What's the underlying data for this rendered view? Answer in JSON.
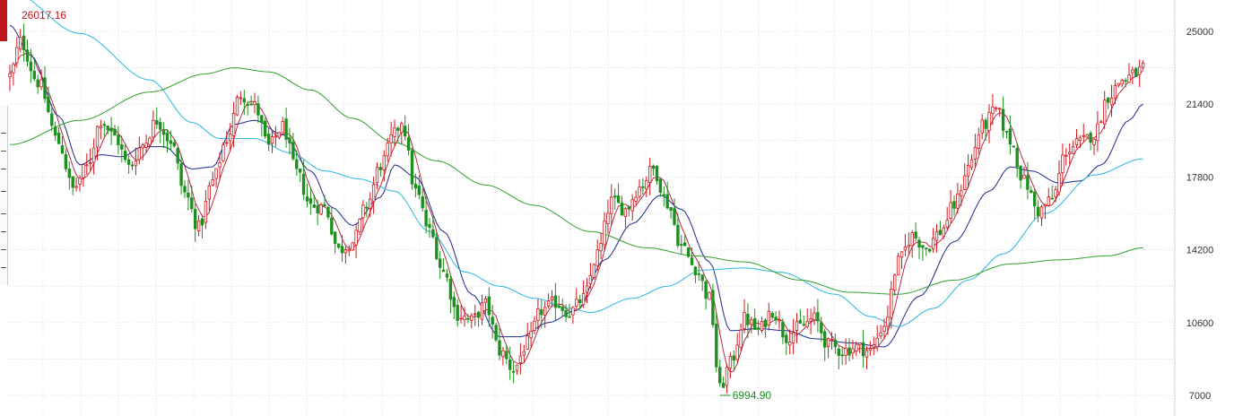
{
  "chart_data": {
    "type": "candlestick",
    "y_axis": {
      "ticks": [
        25000,
        21400,
        17800,
        14200,
        10600,
        7000
      ],
      "range": [
        7000,
        25000
      ],
      "position": "right",
      "grid": true
    },
    "x_axis": {
      "grid": true,
      "labels": []
    },
    "annotations": {
      "high_label": "26017.16",
      "low_label": "6994.90"
    },
    "colors": {
      "up": "#d0161b",
      "down": "#1f8f1f",
      "ma_fast": "#b0182f",
      "ma_mid": "#1b2a8f",
      "ma_slow": "#2ab7e0",
      "ma_long": "#2ea02e",
      "grid": "#c8c8c8",
      "axis_text": "#333333",
      "high_label": "#c0141c",
      "low_label": "#1f8f1f"
    },
    "price_path": [
      [
        0,
        22800
      ],
      [
        3,
        24500
      ],
      [
        8,
        22500
      ],
      [
        14,
        19500
      ],
      [
        18,
        17200
      ],
      [
        22,
        18300
      ],
      [
        26,
        20600
      ],
      [
        30,
        19800
      ],
      [
        34,
        18300
      ],
      [
        38,
        19400
      ],
      [
        42,
        20600
      ],
      [
        46,
        19600
      ],
      [
        50,
        17000
      ],
      [
        54,
        15300
      ],
      [
        58,
        17600
      ],
      [
        62,
        19700
      ],
      [
        66,
        21900
      ],
      [
        70,
        21300
      ],
      [
        74,
        19300
      ],
      [
        78,
        20300
      ],
      [
        82,
        18000
      ],
      [
        86,
        16400
      ],
      [
        90,
        16300
      ],
      [
        94,
        14200
      ],
      [
        98,
        14600
      ],
      [
        102,
        16400
      ],
      [
        106,
        18400
      ],
      [
        110,
        19900
      ],
      [
        112,
        20600
      ],
      [
        116,
        17100
      ],
      [
        120,
        15100
      ],
      [
        124,
        13100
      ],
      [
        128,
        11000
      ],
      [
        132,
        10700
      ],
      [
        136,
        11500
      ],
      [
        140,
        9200
      ],
      [
        144,
        8300
      ],
      [
        148,
        9600
      ],
      [
        152,
        11200
      ],
      [
        156,
        11600
      ],
      [
        160,
        11100
      ],
      [
        164,
        11800
      ],
      [
        168,
        14000
      ],
      [
        172,
        16600
      ],
      [
        176,
        16200
      ],
      [
        180,
        17300
      ],
      [
        184,
        18200
      ],
      [
        188,
        16500
      ],
      [
        192,
        14400
      ],
      [
        196,
        13300
      ],
      [
        200,
        11800
      ],
      [
        203,
        7300
      ],
      [
        206,
        8600
      ],
      [
        210,
        10800
      ],
      [
        214,
        10200
      ],
      [
        218,
        11200
      ],
      [
        222,
        9900
      ],
      [
        226,
        10400
      ],
      [
        230,
        10800
      ],
      [
        234,
        9500
      ],
      [
        238,
        9200
      ],
      [
        242,
        9400
      ],
      [
        246,
        9200
      ],
      [
        250,
        10500
      ],
      [
        254,
        13600
      ],
      [
        258,
        14900
      ],
      [
        262,
        14300
      ],
      [
        266,
        15100
      ],
      [
        270,
        16400
      ],
      [
        274,
        18300
      ],
      [
        278,
        20300
      ],
      [
        282,
        21100
      ],
      [
        286,
        19600
      ],
      [
        290,
        17600
      ],
      [
        294,
        16100
      ],
      [
        298,
        16700
      ],
      [
        302,
        19100
      ],
      [
        306,
        19500
      ],
      [
        310,
        19900
      ],
      [
        314,
        21800
      ],
      [
        318,
        22600
      ],
      [
        322,
        22900
      ],
      [
        324,
        23200
      ]
    ],
    "moving_averages": {
      "ma_mid": [
        [
          0,
          25300
        ],
        [
          6,
          23800
        ],
        [
          14,
          20800
        ],
        [
          20,
          18400
        ],
        [
          26,
          18900
        ],
        [
          32,
          18800
        ],
        [
          38,
          19300
        ],
        [
          44,
          19300
        ],
        [
          52,
          18200
        ],
        [
          58,
          18300
        ],
        [
          64,
          20400
        ],
        [
          70,
          20600
        ],
        [
          78,
          19900
        ],
        [
          86,
          18100
        ],
        [
          92,
          16300
        ],
        [
          98,
          15400
        ],
        [
          106,
          16800
        ],
        [
          110,
          18400
        ],
        [
          116,
          17800
        ],
        [
          124,
          15100
        ],
        [
          132,
          12000
        ],
        [
          140,
          9900
        ],
        [
          146,
          9900
        ],
        [
          154,
          10600
        ],
        [
          162,
          11200
        ],
        [
          170,
          13700
        ],
        [
          178,
          15500
        ],
        [
          186,
          16900
        ],
        [
          192,
          16200
        ],
        [
          200,
          13600
        ],
        [
          206,
          10200
        ],
        [
          214,
          10300
        ],
        [
          222,
          10200
        ],
        [
          230,
          9800
        ],
        [
          240,
          9600
        ],
        [
          250,
          9400
        ],
        [
          260,
          11900
        ],
        [
          270,
          14600
        ],
        [
          280,
          17100
        ],
        [
          286,
          18300
        ],
        [
          292,
          18100
        ],
        [
          300,
          17500
        ],
        [
          306,
          17600
        ],
        [
          312,
          18400
        ],
        [
          320,
          20600
        ],
        [
          324,
          21400
        ]
      ],
      "ma_slow": [
        [
          0,
          27000
        ],
        [
          20,
          24900
        ],
        [
          40,
          22600
        ],
        [
          52,
          20500
        ],
        [
          60,
          19700
        ],
        [
          70,
          19700
        ],
        [
          80,
          19000
        ],
        [
          90,
          18100
        ],
        [
          100,
          17700
        ],
        [
          110,
          17100
        ],
        [
          120,
          15100
        ],
        [
          130,
          13100
        ],
        [
          140,
          12400
        ],
        [
          150,
          11800
        ],
        [
          160,
          11300
        ],
        [
          166,
          11100
        ],
        [
          178,
          11800
        ],
        [
          188,
          12400
        ],
        [
          198,
          13200
        ],
        [
          210,
          13300
        ],
        [
          220,
          13100
        ],
        [
          236,
          12000
        ],
        [
          246,
          10900
        ],
        [
          254,
          10400
        ],
        [
          264,
          11300
        ],
        [
          274,
          12700
        ],
        [
          284,
          14000
        ],
        [
          296,
          16000
        ],
        [
          310,
          17900
        ],
        [
          324,
          18700
        ]
      ],
      "ma_long": [
        [
          0,
          19400
        ],
        [
          20,
          20600
        ],
        [
          40,
          22000
        ],
        [
          56,
          22900
        ],
        [
          64,
          23200
        ],
        [
          74,
          23000
        ],
        [
          86,
          22100
        ],
        [
          98,
          20700
        ],
        [
          110,
          19500
        ],
        [
          122,
          18600
        ],
        [
          136,
          17400
        ],
        [
          150,
          16400
        ],
        [
          166,
          15100
        ],
        [
          182,
          14300
        ],
        [
          196,
          13900
        ],
        [
          210,
          13600
        ],
        [
          226,
          12700
        ],
        [
          240,
          12100
        ],
        [
          254,
          12000
        ],
        [
          270,
          12700
        ],
        [
          286,
          13500
        ],
        [
          300,
          13700
        ],
        [
          314,
          13900
        ],
        [
          324,
          14300
        ]
      ]
    }
  }
}
